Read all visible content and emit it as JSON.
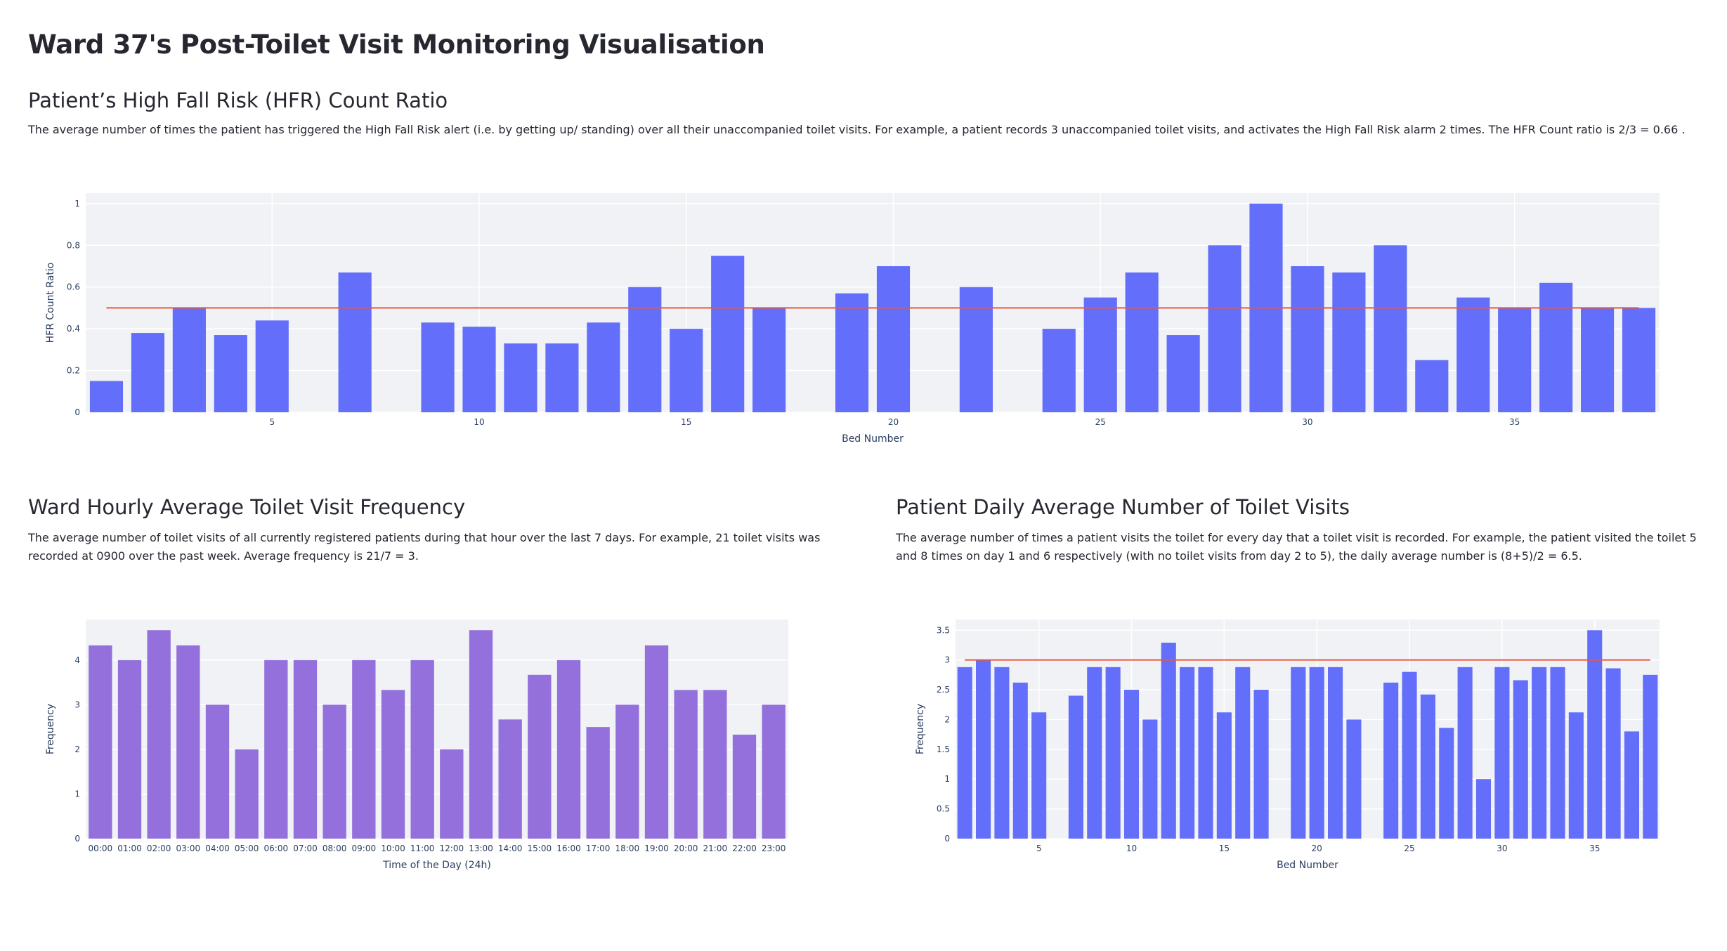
{
  "page": {
    "title": "Ward 37's Post-Toilet Visit Monitoring Visualisation"
  },
  "hfr": {
    "title": "Patient’s High Fall Risk (HFR) Count Ratio",
    "description": "The average number of times the patient has triggered the High Fall Risk alert (i.e. by getting up/ standing) over all their unaccompanied toilet visits. For example, a patient records 3 unaccompanied toilet visits, and activates the High Fall Risk alarm 2 times. The HFR Count ratio is 2/3 = 0.66 ."
  },
  "hourly": {
    "title": "Ward Hourly Average Toilet Visit Frequency",
    "description": "The average number of toilet visits of all currently registered patients during that hour over the last 7 days. For example, 21 toilet visits was recorded at 0900 over the past week. Average frequency is 21/7 = 3."
  },
  "daily": {
    "title": "Patient Daily Average Number of Toilet Visits",
    "description": "The average number of times a patient visits the toilet for every day that a toilet visit is recorded. For example, the patient visited the toilet 5 and 8 times on day 1 and 6 respectively (with no toilet visits from day 2 to 5), the daily average number is (8+5)/2 = 6.5."
  },
  "chart_data": [
    {
      "id": "hfr",
      "type": "bar",
      "xlabel": "Bed Number",
      "ylabel": "HFR Count Ratio",
      "x": [
        1,
        2,
        3,
        4,
        5,
        6,
        7,
        8,
        9,
        10,
        11,
        12,
        13,
        14,
        15,
        16,
        17,
        18,
        19,
        20,
        21,
        22,
        23,
        24,
        25,
        26,
        27,
        28,
        29,
        30,
        31,
        32,
        33,
        34,
        35,
        36,
        37,
        38
      ],
      "values": [
        0.15,
        0.38,
        0.5,
        0.37,
        0.44,
        null,
        0.67,
        null,
        0.43,
        0.41,
        0.33,
        0.33,
        0.43,
        0.6,
        0.4,
        0.75,
        0.5,
        null,
        0.57,
        0.7,
        null,
        0.6,
        null,
        0.4,
        0.55,
        0.67,
        0.37,
        0.8,
        1.0,
        0.7,
        0.67,
        0.8,
        0.25,
        0.55,
        0.5,
        0.62,
        0.5,
        0.5
      ],
      "xlim": [
        0.5,
        38.5
      ],
      "ylim": [
        0,
        1.05
      ],
      "xticks": [
        5,
        10,
        15,
        20,
        25,
        30,
        35
      ],
      "yticks": [
        0,
        0.2,
        0.4,
        0.6,
        0.8,
        1
      ],
      "ytick_labels": [
        "0",
        "0.2",
        "0.4",
        "0.6",
        "0.8",
        "1"
      ],
      "reference_line": {
        "value": 0.5,
        "x_from": 1,
        "x_to": 38,
        "color": "#ef553b"
      },
      "bar_color": "#636efa",
      "grid": true
    },
    {
      "id": "hourly",
      "type": "bar",
      "xlabel": "Time of the Day (24h)",
      "ylabel": "Frequency",
      "categories": [
        "00:00",
        "01:00",
        "02:00",
        "03:00",
        "04:00",
        "05:00",
        "06:00",
        "07:00",
        "08:00",
        "09:00",
        "10:00",
        "11:00",
        "12:00",
        "13:00",
        "14:00",
        "15:00",
        "16:00",
        "17:00",
        "18:00",
        "19:00",
        "20:00",
        "21:00",
        "22:00",
        "23:00"
      ],
      "values": [
        4.33,
        4,
        4.67,
        4.33,
        3,
        2,
        4,
        4,
        3,
        4,
        3.33,
        4,
        2,
        4.67,
        2.67,
        3.67,
        4,
        2.5,
        3,
        4.33,
        3.33,
        3.33,
        2.33,
        3
      ],
      "ylim": [
        0,
        4.91
      ],
      "yticks": [
        0,
        1,
        2,
        3,
        4
      ],
      "ytick_labels": [
        "0",
        "1",
        "2",
        "3",
        "4"
      ],
      "bar_color": "#9370db",
      "grid": true
    },
    {
      "id": "daily",
      "type": "bar",
      "xlabel": "Bed Number",
      "ylabel": "Frequency",
      "x": [
        1,
        2,
        3,
        4,
        5,
        6,
        7,
        8,
        9,
        10,
        11,
        12,
        13,
        14,
        15,
        16,
        17,
        18,
        19,
        20,
        21,
        22,
        23,
        24,
        25,
        26,
        27,
        28,
        29,
        30,
        31,
        32,
        33,
        34,
        35,
        36,
        37,
        38
      ],
      "values": [
        2.88,
        3,
        2.88,
        2.62,
        2.12,
        null,
        2.4,
        2.88,
        2.88,
        2.5,
        2,
        3.29,
        2.88,
        2.88,
        2.12,
        2.88,
        2.5,
        null,
        2.88,
        2.88,
        2.88,
        2,
        null,
        2.62,
        2.8,
        2.42,
        1.86,
        2.88,
        1,
        2.88,
        2.66,
        2.88,
        2.88,
        2.12,
        3.5,
        2.86,
        1.8,
        2.75
      ],
      "xlim": [
        0.5,
        38.5
      ],
      "ylim": [
        0,
        3.68
      ],
      "xticks": [
        5,
        10,
        15,
        20,
        25,
        30,
        35
      ],
      "yticks": [
        0,
        0.5,
        1,
        1.5,
        2,
        2.5,
        3,
        3.5
      ],
      "ytick_labels": [
        "0",
        "0.5",
        "1",
        "1.5",
        "2",
        "2.5",
        "3",
        "3.5"
      ],
      "reference_line": {
        "value": 3,
        "x_from": 1,
        "x_to": 38,
        "color": "#ef553b"
      },
      "bar_color": "#636efa",
      "grid": true
    }
  ]
}
